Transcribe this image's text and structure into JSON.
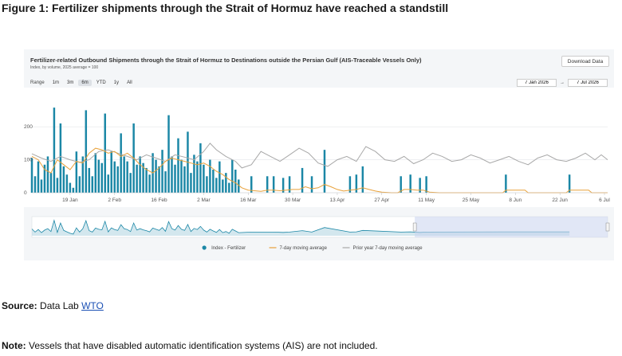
{
  "figure_title": "Figure 1: Fertilizer shipments through the Strait of Hormuz have reached a standstill",
  "chart_panel": {
    "title": "Fertilizer-related Outbound Shipments through the Strait of Hormuz to Destinations outside the Persian Gulf (AIS-Traceable Vessels Only)",
    "subtitle": "Index, by volume, 2025 average = 100",
    "download_label": "Download Data",
    "range_label": "Range",
    "range_buttons": [
      "1m",
      "3m",
      "6m",
      "YTD",
      "1y",
      "All"
    ],
    "range_selected": "6m",
    "date_from": "7 Jan 2026",
    "date_arrow": "→",
    "date_to": "7 Jul 2026"
  },
  "chart_data": {
    "type": "bar",
    "title": "Fertilizer-related Outbound Shipments through the Strait of Hormuz to Destinations outside the Persian Gulf (AIS-Traceable Vessels Only)",
    "subtitle": "Index, by volume, 2025 average = 100",
    "x_start": "2026-01-07",
    "x_end": "2026-07-07",
    "x_tick_labels": [
      "19 Jan",
      "2 Feb",
      "16 Feb",
      "2 Mar",
      "16 Mar",
      "30 Mar",
      "13 Apr",
      "27 Apr",
      "11 May",
      "25 May",
      "8 Jun",
      "22 Jun",
      "6 Jul"
    ],
    "x_tick_dates": [
      "2026-01-19",
      "2026-02-02",
      "2026-02-16",
      "2026-03-02",
      "2026-03-16",
      "2026-03-30",
      "2026-04-13",
      "2026-04-27",
      "2026-05-11",
      "2026-05-25",
      "2026-06-08",
      "2026-06-22",
      "2026-07-06"
    ],
    "y_ticks": [
      0,
      100,
      200
    ],
    "ylim": [
      0,
      280
    ],
    "grid": true,
    "legend_position": "bottom-center",
    "series": [
      {
        "name": "Index - Fertilizer",
        "kind": "bar",
        "color": "#1b87a6",
        "points": [
          [
            "2026-01-07",
            105
          ],
          [
            "2026-01-08",
            50
          ],
          [
            "2026-01-09",
            95
          ],
          [
            "2026-01-10",
            40
          ],
          [
            "2026-01-11",
            85
          ],
          [
            "2026-01-12",
            110
          ],
          [
            "2026-01-13",
            60
          ],
          [
            "2026-01-14",
            258
          ],
          [
            "2026-01-15",
            45
          ],
          [
            "2026-01-16",
            210
          ],
          [
            "2026-01-17",
            80
          ],
          [
            "2026-01-18",
            55
          ],
          [
            "2026-01-19",
            30
          ],
          [
            "2026-01-20",
            15
          ],
          [
            "2026-01-21",
            125
          ],
          [
            "2026-01-22",
            50
          ],
          [
            "2026-01-23",
            110
          ],
          [
            "2026-01-24",
            250
          ],
          [
            "2026-01-25",
            75
          ],
          [
            "2026-01-26",
            50
          ],
          [
            "2026-01-27",
            120
          ],
          [
            "2026-01-28",
            100
          ],
          [
            "2026-01-29",
            90
          ],
          [
            "2026-01-30",
            240
          ],
          [
            "2026-01-31",
            55
          ],
          [
            "2026-02-01",
            125
          ],
          [
            "2026-02-02",
            95
          ],
          [
            "2026-02-03",
            80
          ],
          [
            "2026-02-04",
            180
          ],
          [
            "2026-02-05",
            110
          ],
          [
            "2026-02-06",
            95
          ],
          [
            "2026-02-07",
            60
          ],
          [
            "2026-02-08",
            210
          ],
          [
            "2026-02-09",
            85
          ],
          [
            "2026-02-10",
            110
          ],
          [
            "2026-02-11",
            90
          ],
          [
            "2026-02-12",
            75
          ],
          [
            "2026-02-13",
            55
          ],
          [
            "2026-02-14",
            120
          ],
          [
            "2026-02-15",
            100
          ],
          [
            "2026-02-16",
            80
          ],
          [
            "2026-02-17",
            130
          ],
          [
            "2026-02-18",
            65
          ],
          [
            "2026-02-19",
            235
          ],
          [
            "2026-02-20",
            110
          ],
          [
            "2026-02-21",
            85
          ],
          [
            "2026-02-22",
            165
          ],
          [
            "2026-02-23",
            100
          ],
          [
            "2026-02-24",
            80
          ],
          [
            "2026-02-25",
            185
          ],
          [
            "2026-02-26",
            60
          ],
          [
            "2026-02-27",
            115
          ],
          [
            "2026-02-28",
            95
          ],
          [
            "2026-03-01",
            150
          ],
          [
            "2026-03-02",
            85
          ],
          [
            "2026-03-03",
            50
          ],
          [
            "2026-03-04",
            100
          ],
          [
            "2026-03-05",
            70
          ],
          [
            "2026-03-06",
            45
          ],
          [
            "2026-03-07",
            95
          ],
          [
            "2026-03-08",
            40
          ],
          [
            "2026-03-09",
            60
          ],
          [
            "2026-03-10",
            30
          ],
          [
            "2026-03-11",
            100
          ],
          [
            "2026-03-12",
            70
          ],
          [
            "2026-03-13",
            40
          ],
          [
            "2026-03-17",
            50
          ],
          [
            "2026-03-22",
            50
          ],
          [
            "2026-03-24",
            50
          ],
          [
            "2026-03-27",
            45
          ],
          [
            "2026-03-29",
            50
          ],
          [
            "2026-04-02",
            75
          ],
          [
            "2026-04-05",
            50
          ],
          [
            "2026-04-09",
            130
          ],
          [
            "2026-04-17",
            50
          ],
          [
            "2026-04-19",
            55
          ],
          [
            "2026-04-21",
            80
          ],
          [
            "2026-05-03",
            50
          ],
          [
            "2026-05-06",
            55
          ],
          [
            "2026-05-09",
            45
          ],
          [
            "2026-05-11",
            50
          ],
          [
            "2026-06-05",
            55
          ],
          [
            "2026-06-25",
            55
          ]
        ]
      },
      {
        "name": "7-day moving average",
        "kind": "line",
        "color": "#e8a13a",
        "points": [
          [
            "2026-01-07",
            110
          ],
          [
            "2026-01-09",
            100
          ],
          [
            "2026-01-11",
            70
          ],
          [
            "2026-01-13",
            60
          ],
          [
            "2026-01-15",
            100
          ],
          [
            "2026-01-17",
            85
          ],
          [
            "2026-01-19",
            70
          ],
          [
            "2026-01-21",
            95
          ],
          [
            "2026-01-23",
            90
          ],
          [
            "2026-01-25",
            120
          ],
          [
            "2026-01-27",
            135
          ],
          [
            "2026-01-29",
            130
          ],
          [
            "2026-01-31",
            120
          ],
          [
            "2026-02-02",
            125
          ],
          [
            "2026-02-04",
            110
          ],
          [
            "2026-02-06",
            120
          ],
          [
            "2026-02-08",
            105
          ],
          [
            "2026-02-10",
            85
          ],
          [
            "2026-02-12",
            70
          ],
          [
            "2026-02-14",
            60
          ],
          [
            "2026-02-16",
            75
          ],
          [
            "2026-02-18",
            95
          ],
          [
            "2026-02-20",
            105
          ],
          [
            "2026-02-22",
            100
          ],
          [
            "2026-02-24",
            95
          ],
          [
            "2026-02-26",
            90
          ],
          [
            "2026-02-28",
            85
          ],
          [
            "2026-03-02",
            90
          ],
          [
            "2026-03-04",
            80
          ],
          [
            "2026-03-06",
            65
          ],
          [
            "2026-03-08",
            55
          ],
          [
            "2026-03-10",
            40
          ],
          [
            "2026-03-12",
            30
          ],
          [
            "2026-03-14",
            15
          ],
          [
            "2026-03-16",
            8
          ],
          [
            "2026-03-18",
            6
          ],
          [
            "2026-03-20",
            4
          ],
          [
            "2026-03-22",
            8
          ],
          [
            "2026-03-24",
            8
          ],
          [
            "2026-03-26",
            6
          ],
          [
            "2026-03-28",
            8
          ],
          [
            "2026-03-30",
            10
          ],
          [
            "2026-04-01",
            10
          ],
          [
            "2026-04-03",
            18
          ],
          [
            "2026-04-05",
            12
          ],
          [
            "2026-04-07",
            15
          ],
          [
            "2026-04-09",
            25
          ],
          [
            "2026-04-11",
            18
          ],
          [
            "2026-04-13",
            10
          ],
          [
            "2026-04-15",
            5
          ],
          [
            "2026-04-17",
            8
          ],
          [
            "2026-04-19",
            10
          ],
          [
            "2026-04-21",
            15
          ],
          [
            "2026-04-23",
            10
          ],
          [
            "2026-04-25",
            5
          ],
          [
            "2026-04-27",
            2
          ],
          [
            "2026-04-30",
            0
          ],
          [
            "2026-05-02",
            0
          ],
          [
            "2026-05-04",
            10
          ],
          [
            "2026-05-06",
            10
          ],
          [
            "2026-05-08",
            8
          ],
          [
            "2026-05-10",
            8
          ],
          [
            "2026-05-12",
            2
          ],
          [
            "2026-05-15",
            0
          ],
          [
            "2026-06-04",
            0
          ],
          [
            "2026-06-05",
            8
          ],
          [
            "2026-06-11",
            8
          ],
          [
            "2026-06-12",
            0
          ],
          [
            "2026-06-24",
            0
          ],
          [
            "2026-06-25",
            8
          ],
          [
            "2026-07-01",
            8
          ],
          [
            "2026-07-02",
            0
          ],
          [
            "2026-07-07",
            0
          ]
        ]
      },
      {
        "name": "Prior year 7-day moving average",
        "kind": "line",
        "color": "#a8a8a8",
        "points": [
          [
            "2026-01-07",
            118
          ],
          [
            "2026-01-10",
            105
          ],
          [
            "2026-01-13",
            95
          ],
          [
            "2026-01-16",
            110
          ],
          [
            "2026-01-19",
            100
          ],
          [
            "2026-01-22",
            92
          ],
          [
            "2026-01-25",
            100
          ],
          [
            "2026-01-28",
            125
          ],
          [
            "2026-01-31",
            130
          ],
          [
            "2026-02-03",
            120
          ],
          [
            "2026-02-06",
            110
          ],
          [
            "2026-02-09",
            100
          ],
          [
            "2026-02-12",
            115
          ],
          [
            "2026-02-15",
            105
          ],
          [
            "2026-02-18",
            95
          ],
          [
            "2026-02-21",
            115
          ],
          [
            "2026-02-24",
            108
          ],
          [
            "2026-02-27",
            100
          ],
          [
            "2026-03-02",
            125
          ],
          [
            "2026-03-04",
            150
          ],
          [
            "2026-03-06",
            130
          ],
          [
            "2026-03-09",
            110
          ],
          [
            "2026-03-12",
            95
          ],
          [
            "2026-03-14",
            75
          ],
          [
            "2026-03-17",
            85
          ],
          [
            "2026-03-20",
            125
          ],
          [
            "2026-03-23",
            110
          ],
          [
            "2026-03-26",
            95
          ],
          [
            "2026-03-29",
            115
          ],
          [
            "2026-04-01",
            135
          ],
          [
            "2026-04-04",
            120
          ],
          [
            "2026-04-07",
            90
          ],
          [
            "2026-04-10",
            80
          ],
          [
            "2026-04-13",
            100
          ],
          [
            "2026-04-16",
            110
          ],
          [
            "2026-04-19",
            95
          ],
          [
            "2026-04-22",
            140
          ],
          [
            "2026-04-25",
            125
          ],
          [
            "2026-04-28",
            100
          ],
          [
            "2026-05-01",
            95
          ],
          [
            "2026-05-04",
            110
          ],
          [
            "2026-05-07",
            88
          ],
          [
            "2026-05-10",
            100
          ],
          [
            "2026-05-13",
            120
          ],
          [
            "2026-05-16",
            110
          ],
          [
            "2026-05-19",
            95
          ],
          [
            "2026-05-22",
            100
          ],
          [
            "2026-05-25",
            115
          ],
          [
            "2026-05-28",
            105
          ],
          [
            "2026-05-31",
            90
          ],
          [
            "2026-06-03",
            100
          ],
          [
            "2026-06-06",
            110
          ],
          [
            "2026-06-09",
            95
          ],
          [
            "2026-06-12",
            85
          ],
          [
            "2026-06-15",
            105
          ],
          [
            "2026-06-18",
            115
          ],
          [
            "2026-06-21",
            100
          ],
          [
            "2026-06-24",
            95
          ],
          [
            "2026-06-27",
            105
          ],
          [
            "2026-06-30",
            120
          ],
          [
            "2026-07-03",
            100
          ],
          [
            "2026-07-05",
            115
          ],
          [
            "2026-07-07",
            100
          ]
        ]
      }
    ]
  },
  "legend": [
    {
      "label": "Index - Fertilizer",
      "color": "#1b87a6",
      "marker": "dot"
    },
    {
      "label": "7-day moving average",
      "color": "#e8a13a",
      "marker": "line"
    },
    {
      "label": "Prior year 7-day moving average",
      "color": "#a8a8a8",
      "marker": "line"
    }
  ],
  "source": {
    "label": "Source:",
    "text": " Data Lab ",
    "link_text": "WTO"
  },
  "note": {
    "label": "Note:",
    "text": " Vessels that have disabled automatic identification systems (AIS) are not included."
  }
}
